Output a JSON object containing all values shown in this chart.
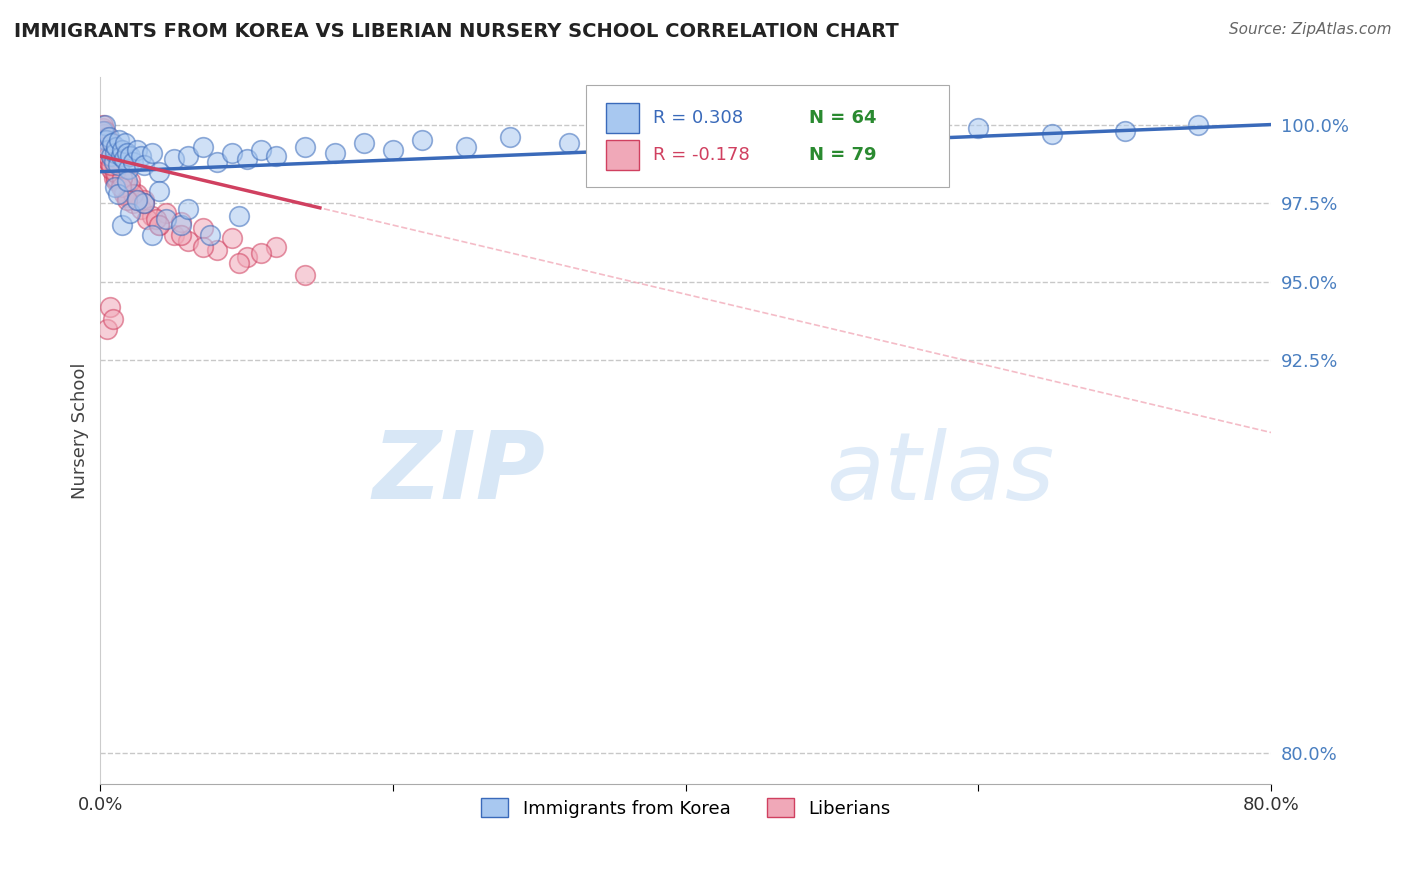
{
  "title": "IMMIGRANTS FROM KOREA VS LIBERIAN NURSERY SCHOOL CORRELATION CHART",
  "source": "Source: ZipAtlas.com",
  "ylabel": "Nursery School",
  "legend_labels": [
    "Immigrants from Korea",
    "Liberians"
  ],
  "legend_r_korea": "R = 0.308",
  "legend_n_korea": "N = 64",
  "legend_r_liberia": "R = -0.178",
  "legend_n_liberia": "N = 79",
  "color_korea": "#a8c8f0",
  "color_liberia": "#f0a8b8",
  "color_korea_line": "#3a6aba",
  "color_liberia_line": "#d04060",
  "color_legend_r_korea": "#3a6aba",
  "color_legend_r_liberia": "#d04060",
  "color_legend_n": "#2a8a30",
  "xmin": 0.0,
  "xmax": 80.0,
  "ymin": 79.0,
  "ymax": 101.5,
  "yticks": [
    80.0,
    92.5,
    95.0,
    97.5,
    100.0
  ],
  "ytick_labels": [
    "80.0%",
    "92.5%",
    "95.0%",
    "97.5%",
    "100.0%"
  ],
  "xticks": [
    0.0,
    20.0,
    40.0,
    60.0,
    80.0
  ],
  "xtick_labels": [
    "0.0%",
    "",
    "",
    "",
    "80.0%"
  ],
  "watermark_zip": "ZIP",
  "watermark_atlas": "atlas",
  "korea_x": [
    0.2,
    0.3,
    0.4,
    0.5,
    0.6,
    0.7,
    0.8,
    0.9,
    1.0,
    1.1,
    1.2,
    1.3,
    1.4,
    1.5,
    1.6,
    1.7,
    1.8,
    1.9,
    2.0,
    2.2,
    2.5,
    2.8,
    3.0,
    3.5,
    4.0,
    5.0,
    6.0,
    7.0,
    8.0,
    9.0,
    10.0,
    11.0,
    12.0,
    14.0,
    16.0,
    18.0,
    20.0,
    22.0,
    25.0,
    28.0,
    32.0,
    36.0,
    40.0,
    45.0,
    50.0,
    55.0,
    60.0,
    65.0,
    70.0,
    75.0,
    1.5,
    2.0,
    3.0,
    3.5,
    4.5,
    5.5,
    7.5,
    9.5,
    1.0,
    1.2,
    1.8,
    2.5,
    4.0,
    6.0
  ],
  "korea_y": [
    99.8,
    100.0,
    99.5,
    99.2,
    99.6,
    99.0,
    99.4,
    98.8,
    99.1,
    99.3,
    98.7,
    99.5,
    99.0,
    99.2,
    98.9,
    99.4,
    99.1,
    98.6,
    99.0,
    98.8,
    99.2,
    99.0,
    98.7,
    99.1,
    98.5,
    98.9,
    99.0,
    99.3,
    98.8,
    99.1,
    98.9,
    99.2,
    99.0,
    99.3,
    99.1,
    99.4,
    99.2,
    99.5,
    99.3,
    99.6,
    99.4,
    99.7,
    99.5,
    99.6,
    99.8,
    99.5,
    99.9,
    99.7,
    99.8,
    100.0,
    96.8,
    97.2,
    97.5,
    96.5,
    97.0,
    96.8,
    96.5,
    97.1,
    98.0,
    97.8,
    98.2,
    97.6,
    97.9,
    97.3
  ],
  "liberia_x": [
    0.1,
    0.15,
    0.2,
    0.25,
    0.3,
    0.35,
    0.4,
    0.45,
    0.5,
    0.55,
    0.6,
    0.65,
    0.7,
    0.75,
    0.8,
    0.85,
    0.9,
    0.95,
    1.0,
    1.05,
    1.1,
    1.15,
    1.2,
    1.3,
    1.4,
    1.5,
    1.6,
    1.7,
    1.8,
    2.0,
    2.2,
    2.5,
    2.8,
    3.0,
    3.5,
    4.0,
    4.5,
    5.0,
    5.5,
    6.0,
    7.0,
    8.0,
    9.0,
    10.0,
    12.0,
    0.3,
    0.5,
    0.7,
    0.9,
    1.1,
    1.3,
    1.6,
    2.0,
    2.5,
    3.2,
    0.2,
    0.4,
    0.6,
    0.8,
    1.0,
    1.2,
    1.5,
    2.2,
    3.0,
    3.8,
    0.35,
    0.55,
    0.75,
    1.4,
    1.8,
    4.0,
    5.5,
    7.0,
    9.5,
    11.0,
    14.0,
    0.45,
    0.65,
    0.85
  ],
  "liberia_y": [
    99.8,
    99.9,
    100.0,
    99.7,
    99.5,
    99.8,
    99.3,
    99.6,
    99.0,
    99.4,
    98.8,
    99.1,
    99.4,
    98.7,
    99.0,
    98.5,
    98.9,
    98.3,
    98.7,
    98.2,
    98.5,
    99.0,
    98.4,
    98.6,
    98.1,
    98.3,
    97.9,
    98.2,
    97.7,
    98.0,
    97.5,
    97.8,
    97.3,
    97.6,
    97.1,
    96.8,
    97.2,
    96.5,
    96.9,
    96.3,
    96.7,
    96.0,
    96.4,
    95.8,
    96.1,
    99.2,
    99.0,
    98.6,
    98.9,
    98.3,
    98.7,
    97.8,
    98.2,
    97.6,
    97.0,
    99.5,
    99.2,
    98.8,
    99.1,
    98.5,
    98.9,
    98.3,
    97.8,
    97.5,
    97.0,
    99.3,
    99.0,
    98.7,
    98.0,
    97.6,
    96.8,
    96.5,
    96.1,
    95.6,
    95.9,
    95.2,
    93.5,
    94.2,
    93.8
  ]
}
